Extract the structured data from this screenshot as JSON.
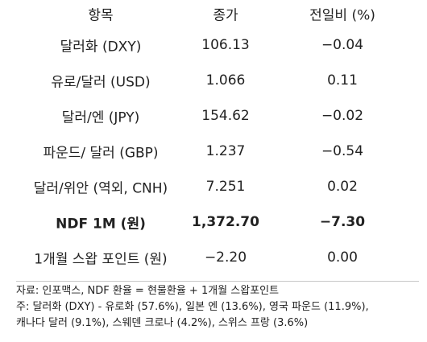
{
  "table": {
    "headers": [
      "항목",
      "종가",
      "전일비 (%)"
    ],
    "rows": [
      {
        "item": "달러화 (DXY)",
        "close": "106.13",
        "change": "−0.04"
      },
      {
        "item": "유로/달러 (USD)",
        "close": "1.066",
        "change": "0.11"
      },
      {
        "item": "달러/엔 (JPY)",
        "close": "154.62",
        "change": "−0.02"
      },
      {
        "item": "파운드/ 달러 (GBP)",
        "close": "1.237",
        "change": "−0.54"
      },
      {
        "item": "달러/위안 (역외, CNH)",
        "close": "7.251",
        "change": "0.02"
      },
      {
        "item": "NDF 1M (원)",
        "close": "1,372.70",
        "change": "−7.30"
      },
      {
        "item": "1개월 스왑 포인트 (원)",
        "close": "−2.20",
        "change": "0.00"
      }
    ]
  },
  "notes": {
    "source": "자료: 인포맥스, NDF 환율 = 현물환율 + 1개월 스왑포인트",
    "note_line1": "주: 달러화 (DXY) - 유로화 (57.6%), 일본 엔 (13.6%), 영국 파운드 (11.9%),",
    "note_line2": "캐나다 달러 (9.1%), 스웨덴 크로나 (4.2%), 스위스 프랑 (3.6%)"
  }
}
